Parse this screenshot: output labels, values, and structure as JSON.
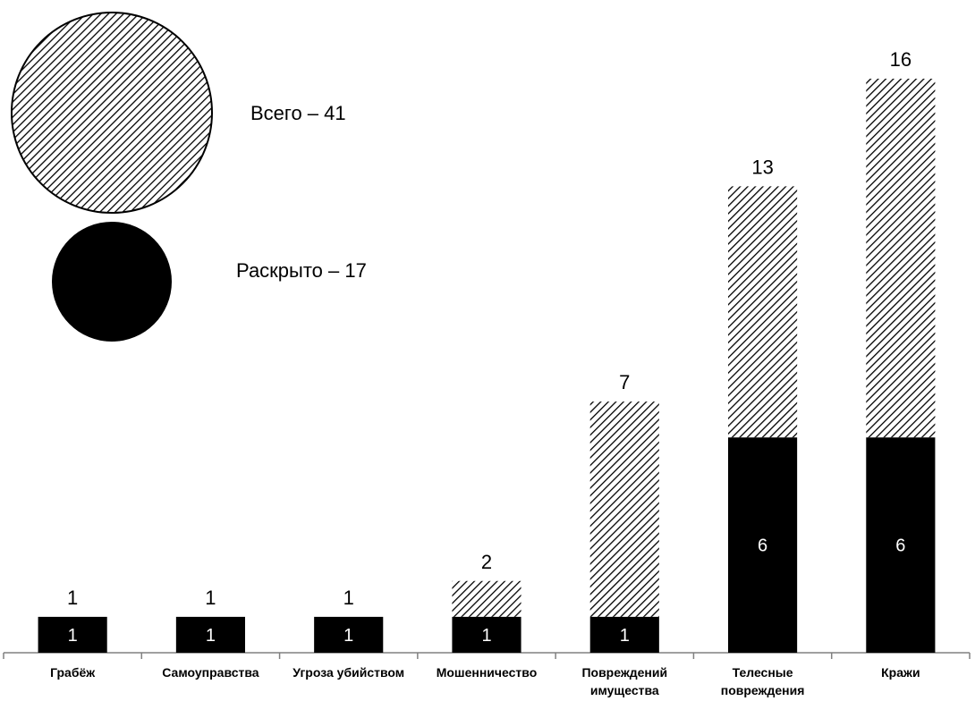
{
  "chart_data": {
    "type": "bar",
    "categories": [
      [
        "Грабёж"
      ],
      [
        "Самоуправства"
      ],
      [
        "Угроза убийством"
      ],
      [
        "Мошенничество"
      ],
      [
        "Повреждений",
        "имущества"
      ],
      [
        "Телесные",
        "повреждения"
      ],
      [
        "Кражи"
      ]
    ],
    "series": [
      {
        "name": "Раскрыто",
        "values": [
          1,
          1,
          1,
          1,
          1,
          6,
          6
        ],
        "fill": "solid",
        "color": "#000000"
      },
      {
        "name": "Всего",
        "values": [
          1,
          1,
          1,
          2,
          7,
          13,
          16
        ],
        "fill": "hatched",
        "color": "#000000"
      }
    ],
    "ylim": [
      0,
      16
    ],
    "grid": false,
    "legend": {
      "placement": "top-left",
      "items": [
        {
          "label": "Всего – 41",
          "marker": "hatched-circle"
        },
        {
          "label": "Раскрыто – 17",
          "marker": "solid-circle"
        }
      ]
    },
    "title": "",
    "xlabel": "",
    "ylabel": ""
  }
}
